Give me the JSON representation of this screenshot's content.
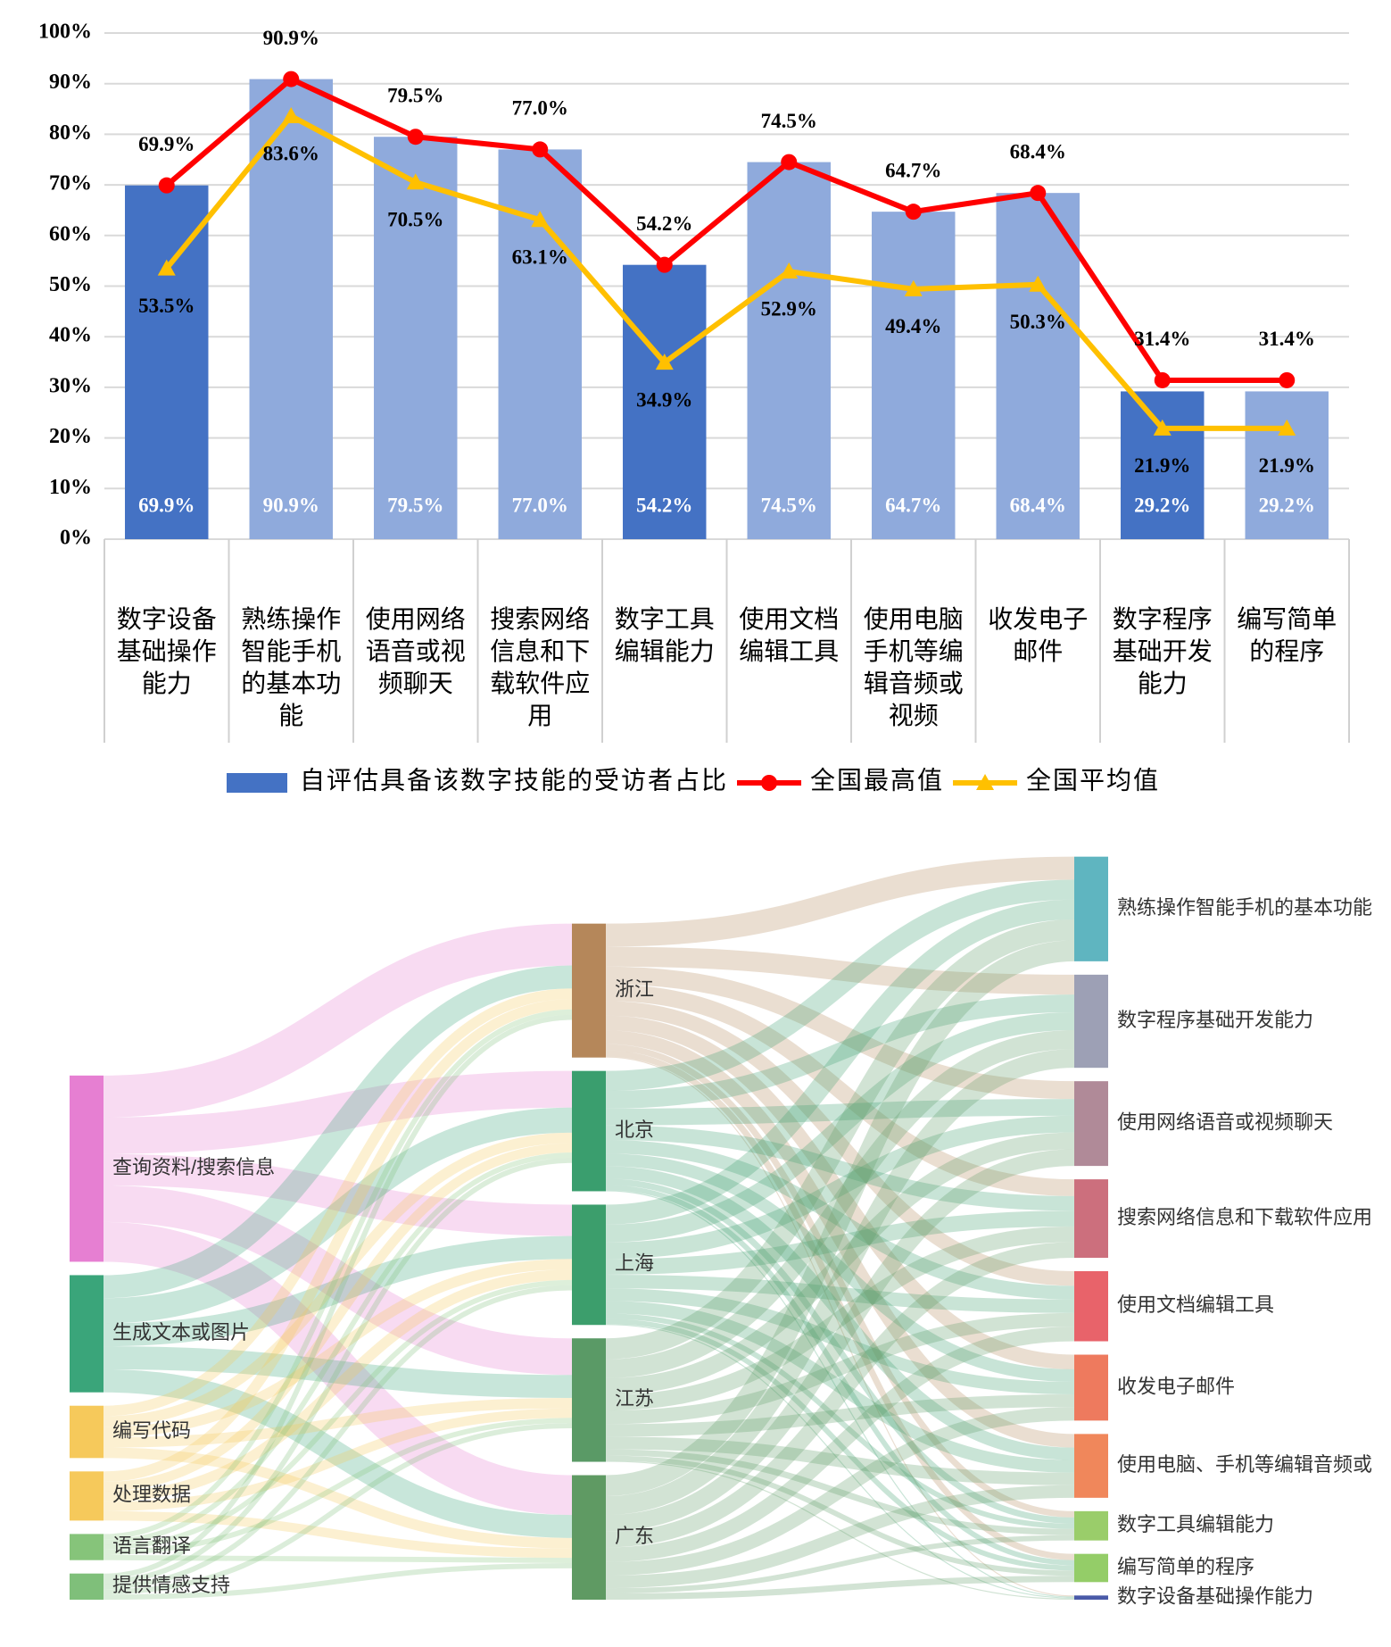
{
  "chart_data": [
    {
      "type": "bar",
      "categories": [
        "数字设备基础操作能力",
        "熟练操作智能手机的基本功能",
        "使用网络语音或视频聊天",
        "搜索网络信息和下载软件应用",
        "数字工具编辑能力",
        "使用文档编辑工具",
        "使用电脑手机等编辑音频或视频",
        "收发电子邮件",
        "数字程序基础开发能力",
        "编写简单的程序"
      ],
      "series": [
        {
          "name": "自评估具备该数字技能的受访者占比",
          "type": "bar",
          "color": "#4472c4",
          "colors": [
            "#4472c4",
            "#8faadc",
            "#8faadc",
            "#8faadc",
            "#4472c4",
            "#8faadc",
            "#8faadc",
            "#8faadc",
            "#4472c4",
            "#8faadc"
          ],
          "values": [
            69.9,
            90.9,
            79.5,
            77.0,
            54.2,
            74.5,
            64.7,
            68.4,
            29.2,
            29.2
          ],
          "value_labels": [
            "69.9%",
            "90.9%",
            "79.5%",
            "77.0%",
            "54.2%",
            "74.5%",
            "64.7%",
            "68.4%",
            "29.2%",
            "29.2%"
          ]
        },
        {
          "name": "全国最高值",
          "type": "line",
          "color": "#ff0000",
          "marker": "circle",
          "values": [
            69.9,
            90.9,
            79.5,
            77.0,
            54.2,
            74.5,
            64.7,
            68.4,
            31.4,
            31.4
          ],
          "value_labels": [
            "69.9%",
            "90.9%",
            "79.5%",
            "77.0%",
            "54.2%",
            "74.5%",
            "64.7%",
            "68.4%",
            "31.4%",
            "31.4%"
          ]
        },
        {
          "name": "全国平均值",
          "type": "line",
          "color": "#ffc000",
          "marker": "triangle",
          "values": [
            53.5,
            83.6,
            70.5,
            63.1,
            34.9,
            52.9,
            49.4,
            50.3,
            21.9,
            21.9
          ],
          "value_labels": [
            "53.5%",
            "83.6%",
            "70.5%",
            "63.1%",
            "34.9%",
            "52.9%",
            "49.4%",
            "50.3%",
            "21.9%",
            "21.9%"
          ]
        }
      ],
      "ylim": [
        0,
        100
      ],
      "yticks": [
        {
          "value": 0,
          "label": "0%"
        },
        {
          "value": 10,
          "label": "10%"
        },
        {
          "value": 20,
          "label": "20%"
        },
        {
          "value": 30,
          "label": "30%"
        },
        {
          "value": 40,
          "label": "40%"
        },
        {
          "value": 50,
          "label": "50%"
        },
        {
          "value": 60,
          "label": "60%"
        },
        {
          "value": 70,
          "label": "70%"
        },
        {
          "value": 80,
          "label": "80%"
        },
        {
          "value": 90,
          "label": "90%"
        },
        {
          "value": 100,
          "label": "100%"
        }
      ],
      "grid": true,
      "legend": "bottom"
    },
    {
      "type": "sankey",
      "columns": [
        [
          {
            "name": "查询资料/搜索信息",
            "color": "#e67fd2"
          },
          {
            "name": "生成文本或图片",
            "color": "#3aa57a"
          },
          {
            "name": "编写代码",
            "color": "#f6c95b"
          },
          {
            "name": "处理数据",
            "color": "#f6c95b"
          },
          {
            "name": "语言翻译",
            "color": "#86c47a"
          },
          {
            "name": "提供情感支持",
            "color": "#7fbf7a"
          }
        ],
        [
          {
            "name": "浙江",
            "color": "#b5875a"
          },
          {
            "name": "北京",
            "color": "#3a9e6e"
          },
          {
            "name": "上海",
            "color": "#3c9e6c"
          },
          {
            "name": "江苏",
            "color": "#5a9a66"
          },
          {
            "name": "广东",
            "color": "#5f9a63"
          }
        ],
        [
          {
            "name": "熟练操作智能手机的基本功能",
            "color": "#5fb5c0"
          },
          {
            "name": "数字程序基础开发能力",
            "color": "#9da0b5"
          },
          {
            "name": "使用网络语音或视频聊天",
            "color": "#b08a98"
          },
          {
            "name": "搜索网络信息和下载软件应用",
            "color": "#cc6f7d"
          },
          {
            "name": "使用文档编辑工具",
            "color": "#e8636a"
          },
          {
            "name": "收发电子邮件",
            "color": "#ee7a5e"
          },
          {
            "name": "使用电脑、手机等编辑音频或",
            "color": "#f0875b"
          },
          {
            "name": "数字工具编辑能力",
            "color": "#9acd6a"
          },
          {
            "name": "编写简单的程序",
            "color": "#94cd68"
          },
          {
            "name": "数字设备基础操作能力",
            "color": "#4a5aa8"
          }
        ]
      ],
      "flows": [
        [
          [
            40,
            35,
            30,
            35,
            38
          ],
          [
            22,
            24,
            22,
            22,
            22
          ],
          [
            10,
            10,
            10,
            10,
            10
          ],
          [
            10,
            9,
            10,
            9,
            9
          ],
          [
            5,
            5,
            5,
            5,
            5
          ],
          [
            5,
            5,
            5,
            5,
            5
          ]
        ],
        [
          [
            22,
            19,
            17,
            16,
            14,
            14,
            13,
            6,
            6,
            1
          ],
          [
            19,
            17,
            16,
            14,
            13,
            12,
            12,
            6,
            5,
            1
          ],
          [
            19,
            17,
            16,
            15,
            13,
            12,
            12,
            5,
            5,
            1
          ],
          [
            20,
            18,
            16,
            15,
            13,
            12,
            12,
            6,
            5,
            1
          ],
          [
            20,
            18,
            16,
            15,
            14,
            13,
            12,
            5,
            6,
            0
          ]
        ]
      ]
    }
  ]
}
